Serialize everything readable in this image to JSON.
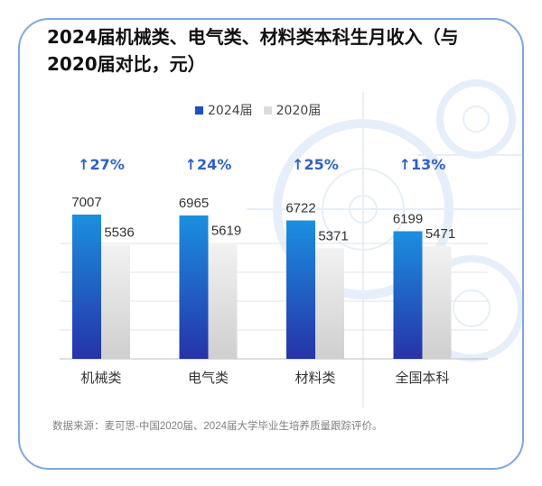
{
  "title": "2024届机械类、电气类、材料类本科生月收入（与2020届对比，元）",
  "source": "数据来源：麦可思-中国2020届、2024届大学毕业生培养质量跟踪评价。",
  "colors": {
    "series_2024": "#1f4fbf",
    "series_2020": "#dcdcdc",
    "growth": "#2f5fc8",
    "card_border": "#7fa6e6"
  },
  "chart_data": {
    "type": "bar",
    "categories": [
      "机械类",
      "电气类",
      "材料类",
      "全国本科"
    ],
    "series": [
      {
        "name": "2024届",
        "values": [
          7007,
          6965,
          6722,
          6199
        ]
      },
      {
        "name": "2020届",
        "values": [
          5536,
          5619,
          5371,
          5471
        ]
      }
    ],
    "growth_labels": [
      "↑27%",
      "↑24%",
      "↑25%",
      "↑13%"
    ],
    "title": "2024届机械类、电气类、材料类本科生月收入（与2020届对比，元）",
    "xlabel": "",
    "ylabel": "",
    "ylim": [
      0,
      7007
    ],
    "grid": true,
    "legend": "top-center"
  }
}
